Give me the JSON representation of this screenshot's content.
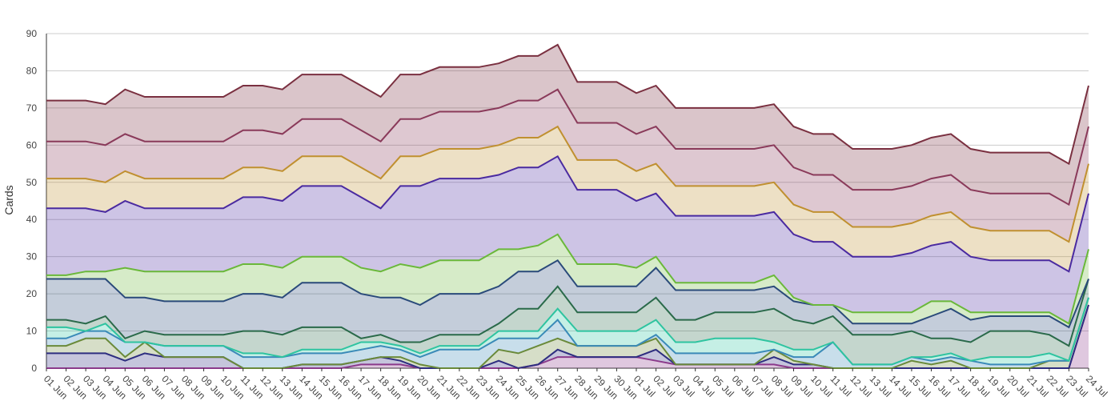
{
  "chart_data": {
    "type": "area",
    "stacked": true,
    "xlabel": "",
    "ylabel": "Cards",
    "ylim": [
      0,
      90
    ],
    "yticks": [
      0,
      10,
      20,
      30,
      40,
      50,
      60,
      70,
      80,
      90
    ],
    "grid": true,
    "legend": "none",
    "x": [
      "01 Jun",
      "02 Jun",
      "03 Jun",
      "04 Jun",
      "05 Jun",
      "06 Jun",
      "07 Jun",
      "08 Jun",
      "09 Jun",
      "10 Jun",
      "11 Jun",
      "12 Jun",
      "13 Jun",
      "14 Jun",
      "15 Jun",
      "16 Jun",
      "17 Jun",
      "18 Jun",
      "19 Jun",
      "20 Jun",
      "21 Jun",
      "22 Jun",
      "23 Jun",
      "24 Jun",
      "25 Jun",
      "26 Jun",
      "27 Jun",
      "28 Jun",
      "29 Jun",
      "30 Jun",
      "01 Jul",
      "02 Jul",
      "03 Jul",
      "04 Jul",
      "05 Jul",
      "06 Jul",
      "07 Jul",
      "08 Jul",
      "09 Jul",
      "10 Jul",
      "11 Jul",
      "12 Jul",
      "13 Jul",
      "14 Jul",
      "15 Jul",
      "16 Jul",
      "17 Jul",
      "18 Jul",
      "19 Jul",
      "20 Jul",
      "21 Jul",
      "22 Jul",
      "23 Jul",
      "24 Jul"
    ],
    "series_note_cumulative": false,
    "series": [
      {
        "color": "#8b3a8b",
        "values": [
          0,
          0,
          0,
          0,
          0,
          0,
          0,
          0,
          0,
          0,
          0,
          0,
          0,
          0,
          0,
          0,
          1,
          1,
          1,
          0,
          0,
          0,
          0,
          0,
          0,
          1,
          3,
          3,
          3,
          3,
          3,
          2,
          1,
          1,
          1,
          1,
          1,
          1,
          0,
          0,
          0,
          0,
          0,
          0,
          0,
          0,
          0,
          0,
          0,
          0,
          0,
          0,
          0,
          17
        ]
      },
      {
        "color": "#2e2e80",
        "values": [
          4,
          4,
          4,
          4,
          2,
          4,
          3,
          3,
          3,
          3,
          0,
          0,
          0,
          1,
          1,
          1,
          1,
          2,
          1,
          0,
          0,
          0,
          0,
          2,
          0,
          0,
          2,
          0,
          0,
          0,
          0,
          3,
          0,
          0,
          0,
          0,
          0,
          2,
          1,
          1,
          0,
          0,
          0,
          0,
          0,
          0,
          0,
          0,
          0,
          0,
          0,
          0,
          0,
          0
        ]
      },
      {
        "color": "#6a8a3a",
        "values": [
          2,
          2,
          4,
          4,
          1,
          3,
          0,
          0,
          0,
          0,
          0,
          0,
          0,
          0,
          0,
          0,
          0,
          0,
          1,
          1,
          0,
          0,
          0,
          3,
          4,
          5,
          3,
          3,
          3,
          3,
          3,
          3,
          0,
          0,
          0,
          0,
          0,
          2,
          1,
          0,
          0,
          0,
          0,
          0,
          2,
          1,
          2,
          0,
          0,
          0,
          0,
          2,
          2,
          2
        ]
      },
      {
        "color": "#3a8ab8",
        "values": [
          2,
          2,
          2,
          2,
          4,
          0,
          3,
          3,
          3,
          3,
          3,
          3,
          3,
          3,
          3,
          3,
          3,
          3,
          2,
          2,
          5,
          5,
          5,
          3,
          4,
          2,
          5,
          0,
          0,
          0,
          0,
          1,
          3,
          3,
          3,
          3,
          3,
          0,
          1,
          2,
          7,
          1,
          1,
          1,
          1,
          1,
          1,
          2,
          1,
          1,
          1,
          0,
          0,
          0
        ]
      },
      {
        "color": "#2ec4a0",
        "values": [
          3,
          3,
          0,
          2,
          0,
          0,
          0,
          0,
          0,
          0,
          1,
          1,
          0,
          1,
          1,
          1,
          2,
          1,
          1,
          1,
          1,
          1,
          1,
          2,
          2,
          2,
          3,
          4,
          4,
          4,
          4,
          4,
          3,
          3,
          4,
          4,
          4,
          2,
          2,
          2,
          0,
          0,
          0,
          0,
          0,
          1,
          1,
          0,
          2,
          2,
          2,
          2,
          0,
          0
        ]
      },
      {
        "color": "#2a6a4a",
        "values": [
          2,
          2,
          2,
          2,
          1,
          3,
          3,
          3,
          3,
          3,
          6,
          6,
          6,
          6,
          6,
          6,
          1,
          2,
          1,
          3,
          3,
          3,
          3,
          2,
          6,
          6,
          6,
          5,
          5,
          5,
          5,
          6,
          6,
          6,
          7,
          7,
          7,
          9,
          8,
          7,
          7,
          8,
          8,
          8,
          7,
          5,
          4,
          5,
          7,
          7,
          7,
          5,
          4,
          5
        ]
      },
      {
        "color": "#2a4a7a",
        "values": [
          11,
          11,
          12,
          10,
          11,
          9,
          9,
          9,
          9,
          9,
          10,
          10,
          10,
          12,
          12,
          12,
          12,
          10,
          12,
          10,
          11,
          11,
          11,
          10,
          10,
          10,
          7,
          7,
          7,
          7,
          7,
          8,
          8,
          8,
          6,
          6,
          6,
          6,
          5,
          5,
          3,
          3,
          3,
          3,
          2,
          6,
          8,
          6,
          4,
          4,
          4,
          5,
          5,
          0
        ]
      },
      {
        "color": "#6ab83a",
        "values": [
          1,
          1,
          2,
          2,
          8,
          7,
          8,
          8,
          8,
          8,
          8,
          8,
          8,
          7,
          7,
          7,
          7,
          7,
          9,
          10,
          9,
          9,
          9,
          10,
          6,
          7,
          7,
          6,
          6,
          6,
          5,
          3,
          2,
          2,
          2,
          2,
          2,
          3,
          1,
          0,
          0,
          3,
          3,
          3,
          3,
          4,
          2,
          2,
          1,
          1,
          1,
          1,
          1,
          8
        ]
      },
      {
        "color": "#4a2aa0",
        "values": [
          18,
          18,
          17,
          16,
          18,
          17,
          17,
          17,
          17,
          17,
          18,
          18,
          18,
          19,
          19,
          19,
          19,
          17,
          21,
          22,
          22,
          22,
          22,
          20,
          22,
          21,
          21,
          20,
          20,
          20,
          18,
          17,
          18,
          18,
          18,
          18,
          18,
          17,
          17,
          17,
          17,
          15,
          15,
          15,
          16,
          15,
          16,
          15,
          14,
          14,
          14,
          14,
          14,
          15
        ]
      },
      {
        "color": "#c09030",
        "values": [
          8,
          8,
          8,
          8,
          8,
          8,
          8,
          8,
          8,
          8,
          8,
          8,
          8,
          8,
          8,
          8,
          8,
          8,
          8,
          8,
          8,
          8,
          8,
          8,
          8,
          8,
          8,
          8,
          8,
          8,
          8,
          8,
          8,
          8,
          8,
          8,
          8,
          8,
          8,
          8,
          8,
          8,
          8,
          8,
          8,
          8,
          8,
          8,
          8,
          8,
          8,
          8,
          8,
          8
        ]
      },
      {
        "color": "#8a3a5a",
        "values": [
          10,
          10,
          10,
          10,
          10,
          10,
          10,
          10,
          10,
          10,
          10,
          10,
          10,
          10,
          10,
          10,
          10,
          10,
          10,
          10,
          10,
          10,
          10,
          10,
          10,
          10,
          10,
          10,
          10,
          10,
          10,
          10,
          10,
          10,
          10,
          10,
          10,
          10,
          10,
          10,
          10,
          10,
          10,
          10,
          10,
          10,
          10,
          10,
          10,
          10,
          10,
          10,
          10,
          10
        ]
      },
      {
        "color": "#7a3040",
        "values": [
          11,
          11,
          11,
          11,
          12,
          12,
          12,
          12,
          12,
          12,
          12,
          12,
          12,
          12,
          12,
          12,
          12,
          12,
          12,
          12,
          12,
          12,
          12,
          12,
          12,
          12,
          12,
          11,
          11,
          11,
          11,
          11,
          11,
          11,
          11,
          11,
          11,
          11,
          11,
          11,
          11,
          11,
          11,
          11,
          11,
          11,
          11,
          11,
          11,
          11,
          11,
          11,
          11,
          11
        ]
      }
    ]
  }
}
